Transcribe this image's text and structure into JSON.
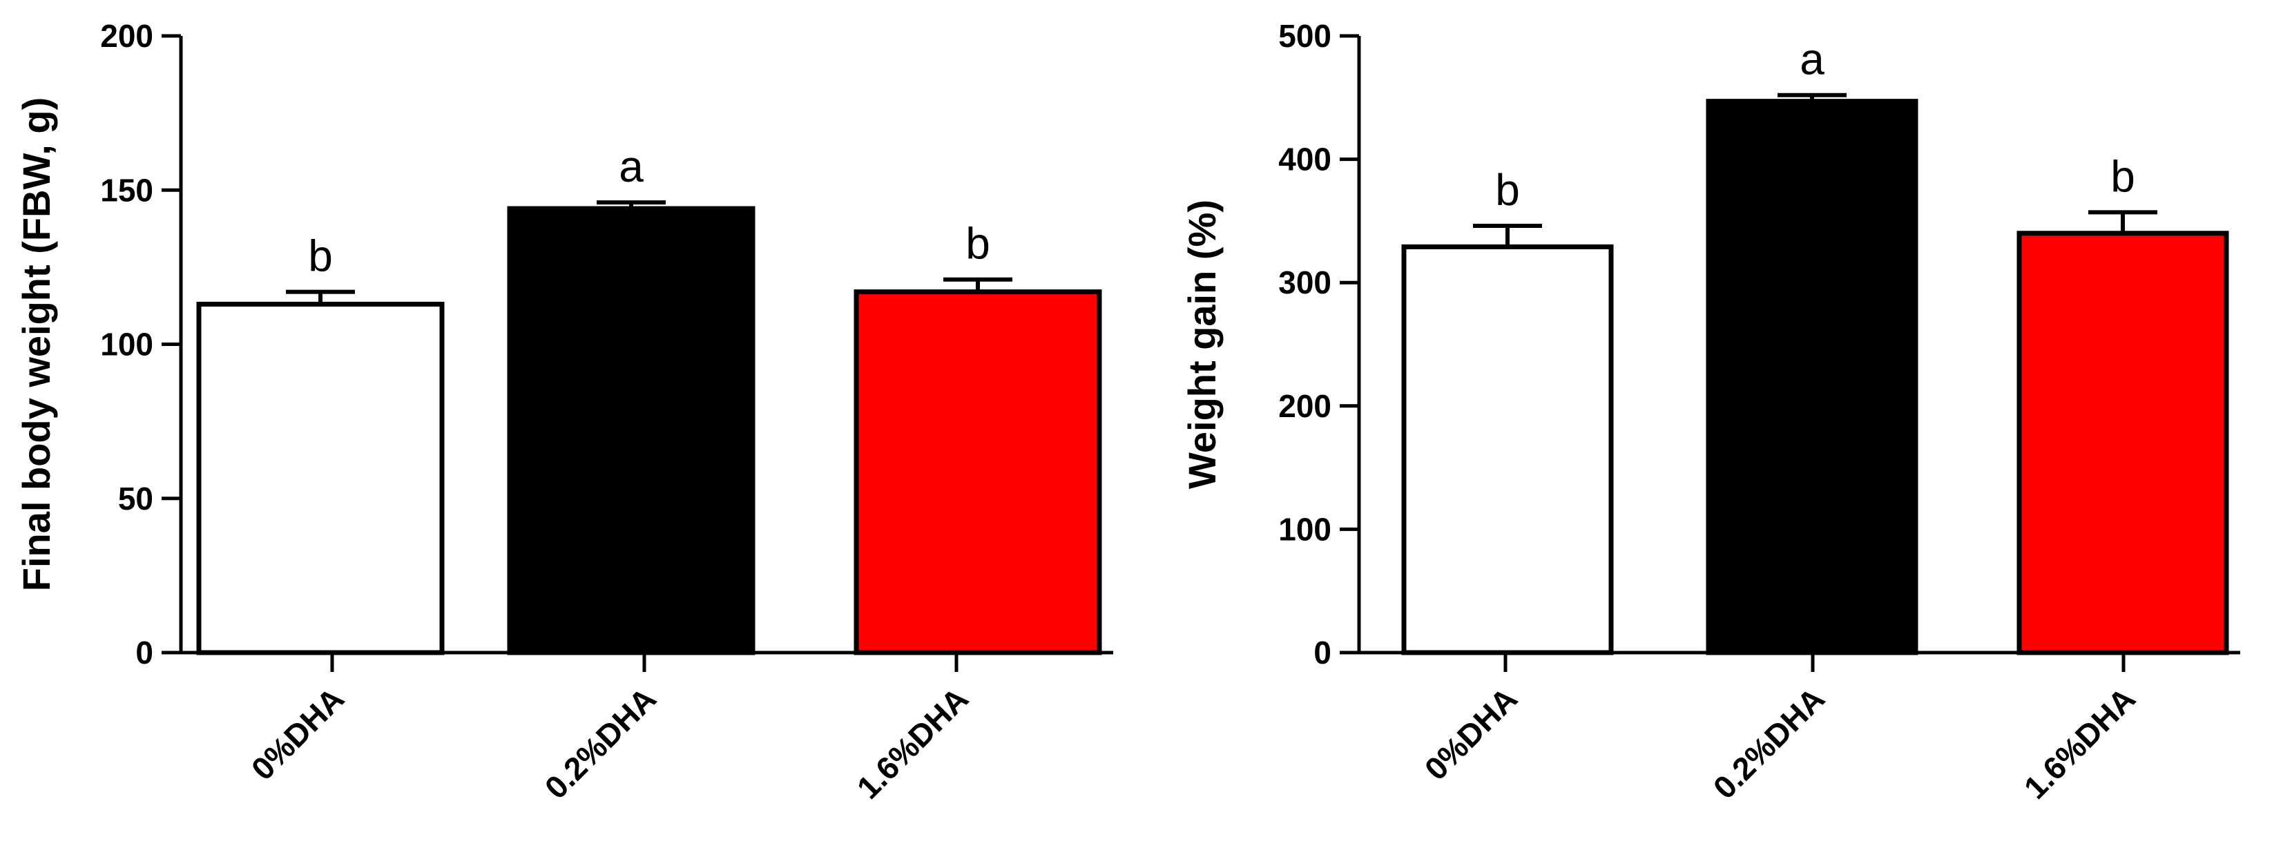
{
  "chart_data": [
    {
      "type": "bar",
      "ylabel": "Final body weight (FBW, g)",
      "categories": [
        "0%DHA",
        "0.2%DHA",
        "1.6%DHA"
      ],
      "values": [
        113,
        144,
        117
      ],
      "errors": [
        4,
        2,
        4
      ],
      "sig_letters": [
        "b",
        "a",
        "b"
      ],
      "bar_colors": [
        "#ffffff",
        "#000000",
        "#ff0000"
      ],
      "ylim": [
        0,
        200
      ],
      "yticks": [
        0,
        50,
        100,
        150,
        200
      ],
      "grid": false,
      "legend": false
    },
    {
      "type": "bar",
      "ylabel": "Weight gain (%)",
      "categories": [
        "0%DHA",
        "0.2%DHA",
        "1.6%DHA"
      ],
      "values": [
        329,
        447,
        340
      ],
      "errors": [
        17,
        5,
        17
      ],
      "sig_letters": [
        "b",
        "a",
        "b"
      ],
      "bar_colors": [
        "#ffffff",
        "#000000",
        "#ff0000"
      ],
      "ylim": [
        0,
        500
      ],
      "yticks": [
        0,
        100,
        200,
        300,
        400,
        500
      ],
      "grid": false,
      "legend": false
    }
  ]
}
